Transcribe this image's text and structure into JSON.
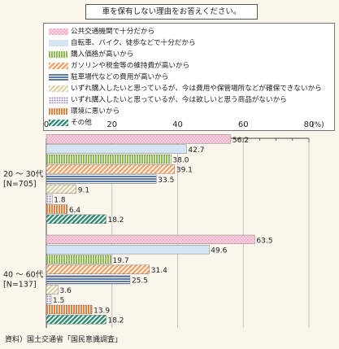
{
  "question": "車を保有しない理由をお答えください。",
  "source": "資料）国土交通省「国民意識調査」",
  "chart_data": {
    "type": "bar",
    "orientation": "horizontal",
    "xlim": [
      0,
      80
    ],
    "ticks": [
      "0",
      "20",
      "40",
      "60",
      "80"
    ],
    "unit": "(%)",
    "groups": [
      {
        "label_lines": [
          "20 ～ 30代",
          "[N=705]"
        ]
      },
      {
        "label_lines": [
          "40 ～ 60代",
          "[N=137]"
        ]
      }
    ],
    "series": [
      {
        "name": "公共交通機関で十分だから",
        "values": [
          56.2,
          63.5
        ],
        "labels": [
          "56.2",
          "63.5"
        ],
        "color": "#f2b3cc",
        "pattern": "dots"
      },
      {
        "name": "自転車、バイク、徒歩などで十分だから",
        "values": [
          42.7,
          49.6
        ],
        "labels": [
          "42.7",
          "49.6"
        ],
        "color": "#d5e4f4",
        "pattern": "solid"
      },
      {
        "name": "購入価格が高いから",
        "values": [
          38.0,
          19.7
        ],
        "labels": [
          "38.0",
          "19.7"
        ],
        "color": "#8bbd4f",
        "pattern": "vlines"
      },
      {
        "name": "ガソリンや税金等の維持費が高いから",
        "values": [
          39.1,
          31.4
        ],
        "labels": [
          "39.1",
          "31.4"
        ],
        "color": "#f2a46a",
        "pattern": "diag"
      },
      {
        "name": "駐車場代などの費用が高いから",
        "values": [
          33.5,
          25.5
        ],
        "labels": [
          "33.5",
          "25.5"
        ],
        "color": "#5d78ab",
        "pattern": "hlines"
      },
      {
        "name": "いずれ購入したいと思っているが、今は費用や保管場所などが確保できないから",
        "values": [
          9.1,
          3.6
        ],
        "labels": [
          "9.1",
          "3.6"
        ],
        "color": "#dcd2a8",
        "pattern": "diag2"
      },
      {
        "name": "いずれ購入したいと思っているが、今は欲しいと思う商品がないから",
        "values": [
          1.8,
          1.5
        ],
        "labels": [
          "1.8",
          "1.5"
        ],
        "color": "#9a7ec0",
        "pattern": "dots2"
      },
      {
        "name": "環境に悪いから",
        "values": [
          6.4,
          13.9
        ],
        "labels": [
          "6.4",
          "13.9"
        ],
        "color": "#e8823c",
        "pattern": "vlines2"
      },
      {
        "name": "その他",
        "values": [
          18.2,
          18.2
        ],
        "labels": [
          "18.2",
          "18.2"
        ],
        "color": "#2f8a73",
        "pattern": "diag3"
      }
    ]
  }
}
